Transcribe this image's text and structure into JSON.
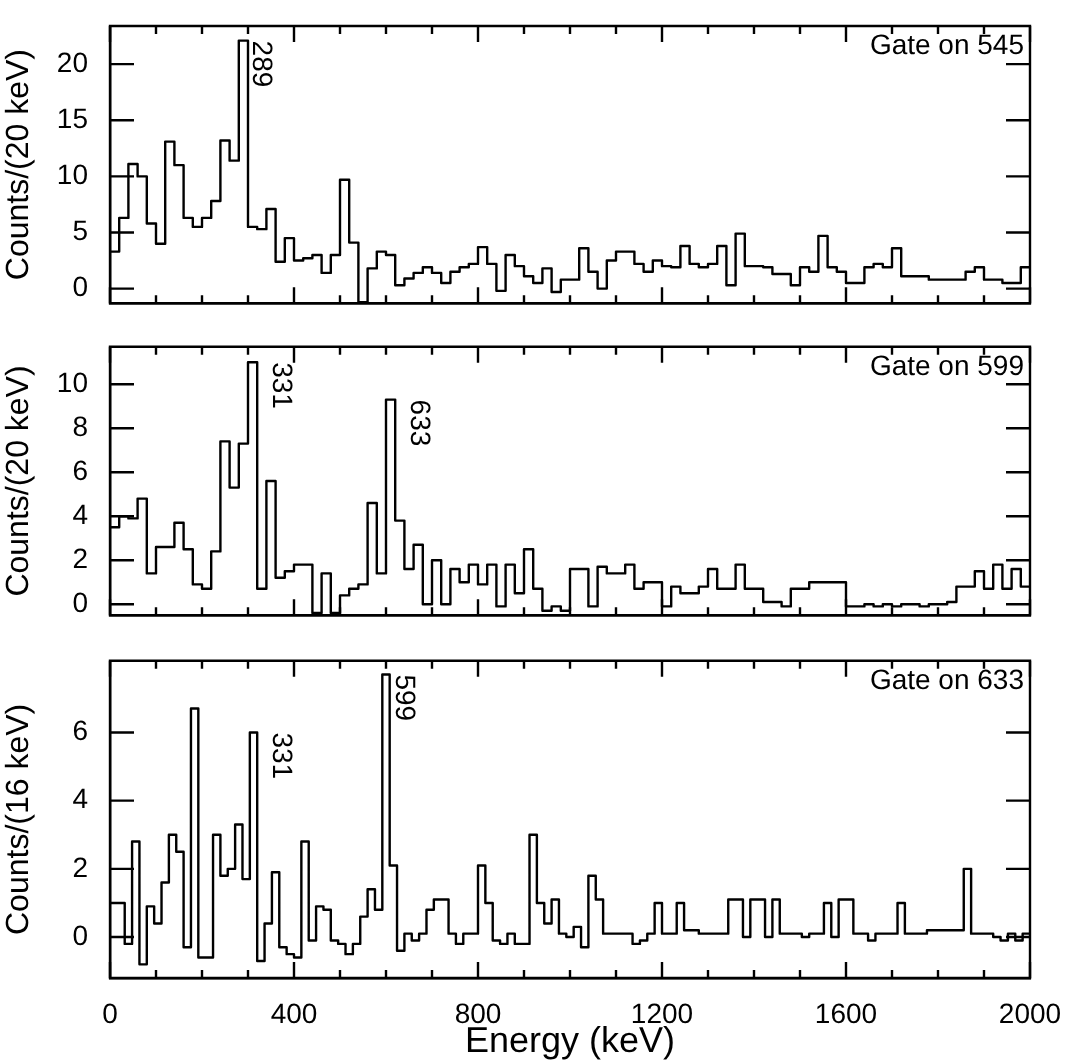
{
  "chart_data": [
    {
      "type": "histogram",
      "ylabel": "Counts/(20 keV)",
      "tick_labels": "y",
      "color": "#000000",
      "annotations": [
        "Gate on 545",
        {
          "text": "289",
          "x": 289,
          "y": 22.1
        }
      ],
      "xlim": [
        0,
        2000
      ],
      "xticks": [
        0,
        {
          "value": 100,
          "label": null
        },
        {
          "value": 200,
          "label": null
        },
        {
          "value": 300,
          "label": null
        },
        400,
        {
          "value": 500,
          "label": null
        },
        {
          "value": 600,
          "label": null
        },
        {
          "value": 700,
          "label": null
        },
        800,
        {
          "value": 900,
          "label": null
        },
        {
          "value": 1000,
          "label": null
        },
        {
          "value": 1100,
          "label": null
        },
        1200,
        {
          "value": 1300,
          "label": null
        },
        {
          "value": 1400,
          "label": null
        },
        {
          "value": 1500,
          "label": null
        },
        1600,
        {
          "value": 1700,
          "label": null
        },
        {
          "value": 1800,
          "label": null
        },
        {
          "value": 1900,
          "label": null
        },
        2000
      ],
      "ylim": [
        -1.3,
        23.4
      ],
      "yticks": [
        0,
        5,
        10,
        15,
        20
      ],
      "bins": [
        0,
        20,
        40,
        60,
        80,
        100,
        120,
        140,
        160,
        180,
        200,
        220,
        240,
        260,
        280,
        300,
        320,
        340,
        360,
        380,
        400,
        420,
        440,
        460,
        480,
        500,
        520,
        540,
        560,
        580,
        600,
        620,
        640,
        660,
        680,
        700,
        720,
        740,
        760,
        780,
        800,
        820,
        840,
        860,
        880,
        900,
        920,
        940,
        960,
        980,
        1000,
        1020,
        1040,
        1060,
        1080,
        1100,
        1120,
        1140,
        1160,
        1180,
        1200,
        1220,
        1240,
        1260,
        1280,
        1300,
        1320,
        1340,
        1360,
        1380,
        1400,
        1420,
        1440,
        1460,
        1480,
        1500,
        1520,
        1540,
        1560,
        1580,
        1600,
        1620,
        1640,
        1660,
        1680,
        1700,
        1720,
        1740,
        1760,
        1780,
        1800,
        1820,
        1840,
        1860,
        1880,
        1900,
        1920,
        1940,
        1960,
        1980,
        2000
      ],
      "values": [
        3.3,
        6.3,
        11.1,
        10,
        5.8,
        4.0,
        13.1,
        11,
        6.3,
        5.5,
        6.3,
        7.8,
        13.2,
        11.4,
        22.1,
        5.5,
        5.3,
        7.1,
        2.4,
        4.5,
        2.5,
        2.7,
        3.0,
        1.4,
        3.0,
        9.7,
        4.1,
        -1.2,
        1.8,
        3.3,
        3.0,
        0.3,
        0.9,
        1.4,
        1.9,
        1.4,
        0.5,
        1.5,
        1.9,
        2.2,
        3.7,
        2.2,
        -0.2,
        3.0,
        2.0,
        1.1,
        0.5,
        1.8,
        -0.3,
        0.8,
        0.8,
        3.6,
        1.5,
        0,
        2.5,
        3.3,
        3.3,
        2.2,
        1.5,
        2.5,
        2.0,
        1.9,
        3.8,
        2.2,
        1.9,
        2.2,
        3.8,
        0.3,
        4.9,
        2.0,
        2.0,
        1.9,
        1.3,
        1.3,
        0.3,
        1.9,
        1.5,
        4.7,
        1.9,
        1.5,
        0.5,
        0.5,
        1.9,
        2.2,
        1.9,
        3.6,
        1.1,
        1.1,
        1.1,
        0.8,
        0.8,
        0.8,
        0.8,
        1.5,
        1.9,
        0.8,
        0.8,
        0.5,
        0.5,
        1.9
      ]
    },
    {
      "type": "histogram",
      "ylabel": "Counts/(20 keV)",
      "tick_labels": "y",
      "color": "#000000",
      "annotations": [
        "Gate on 599",
        {
          "text": "331",
          "x": 331,
          "y": 11.0
        },
        {
          "text": "633",
          "x": 633,
          "y": 9.3
        }
      ],
      "xlim": [
        0,
        2000
      ],
      "xticks": [
        0,
        {
          "value": 100,
          "label": null
        },
        {
          "value": 200,
          "label": null
        },
        {
          "value": 300,
          "label": null
        },
        400,
        {
          "value": 500,
          "label": null
        },
        {
          "value": 600,
          "label": null
        },
        {
          "value": 700,
          "label": null
        },
        800,
        {
          "value": 900,
          "label": null
        },
        {
          "value": 1000,
          "label": null
        },
        {
          "value": 1100,
          "label": null
        },
        1200,
        {
          "value": 1300,
          "label": null
        },
        {
          "value": 1400,
          "label": null
        },
        {
          "value": 1500,
          "label": null
        },
        1600,
        {
          "value": 1700,
          "label": null
        },
        {
          "value": 1800,
          "label": null
        },
        {
          "value": 1900,
          "label": null
        },
        2000
      ],
      "ylim": [
        -0.5,
        11.7
      ],
      "yticks": [
        0,
        2,
        4,
        6,
        8,
        10
      ],
      "bins": [
        0,
        20,
        40,
        60,
        80,
        100,
        120,
        140,
        160,
        180,
        200,
        220,
        240,
        260,
        280,
        300,
        320,
        340,
        360,
        380,
        400,
        420,
        440,
        460,
        480,
        500,
        520,
        540,
        560,
        580,
        600,
        620,
        640,
        660,
        680,
        700,
        720,
        740,
        760,
        780,
        800,
        820,
        840,
        860,
        880,
        900,
        920,
        940,
        960,
        980,
        1000,
        1020,
        1040,
        1060,
        1080,
        1100,
        1120,
        1140,
        1160,
        1180,
        1200,
        1220,
        1240,
        1260,
        1280,
        1300,
        1320,
        1340,
        1360,
        1380,
        1400,
        1420,
        1440,
        1460,
        1480,
        1500,
        1520,
        1540,
        1560,
        1580,
        1600,
        1620,
        1640,
        1660,
        1680,
        1700,
        1720,
        1740,
        1760,
        1780,
        1800,
        1820,
        1840,
        1860,
        1880,
        1900,
        1920,
        1940,
        1960,
        1980,
        2000
      ],
      "values": [
        3.5,
        4.0,
        3.9,
        4.8,
        1.4,
        2.6,
        2.6,
        3.7,
        2.5,
        0.9,
        0.7,
        2.4,
        7.4,
        5.3,
        7.3,
        11.0,
        0.7,
        5.6,
        1.2,
        1.5,
        1.8,
        1.8,
        -0.4,
        1.4,
        -0.4,
        0.4,
        0.7,
        0.9,
        4.6,
        1.4,
        9.3,
        3.8,
        1.6,
        2.7,
        0,
        2.0,
        0,
        1.6,
        1.0,
        1.8,
        0.9,
        1.8,
        -0.1,
        1.8,
        0.5,
        2.5,
        0.7,
        -0.3,
        -0.1,
        -0.3,
        1.6,
        1.6,
        -0.1,
        1.7,
        1.4,
        1.4,
        1.8,
        0.7,
        1.0,
        1.0,
        -0.1,
        0.8,
        0.5,
        0.5,
        0.8,
        1.6,
        0.7,
        0.7,
        1.8,
        0.7,
        0.7,
        0.1,
        0.1,
        -0.1,
        0.7,
        0.7,
        1.0,
        1.0,
        1.0,
        1.0,
        -0.1,
        -0.1,
        0,
        -0.1,
        0,
        -0.1,
        0,
        0,
        -0.1,
        0,
        0,
        0.1,
        0.8,
        0.8,
        1.5,
        0.7,
        1.8,
        0.7,
        1.6,
        0.8
      ]
    },
    {
      "type": "histogram",
      "ylabel": "Counts/(16 keV)",
      "xlabel": "Energy (keV)",
      "color": "#000000",
      "annotations": [
        "Gate on 633",
        {
          "text": "331",
          "x": 331,
          "y": 6.0
        },
        {
          "text": "599",
          "x": 599,
          "y": 7.7
        }
      ],
      "xlim": [
        0,
        2000
      ],
      "xticks": [
        0,
        {
          "value": 100,
          "label": null
        },
        {
          "value": 200,
          "label": null
        },
        {
          "value": 300,
          "label": null
        },
        400,
        {
          "value": 500,
          "label": null
        },
        {
          "value": 600,
          "label": null
        },
        {
          "value": 700,
          "label": null
        },
        800,
        {
          "value": 900,
          "label": null
        },
        {
          "value": 1000,
          "label": null
        },
        {
          "value": 1100,
          "label": null
        },
        1200,
        {
          "value": 1300,
          "label": null
        },
        {
          "value": 1400,
          "label": null
        },
        {
          "value": 1500,
          "label": null
        },
        1600,
        {
          "value": 1700,
          "label": null
        },
        {
          "value": 1800,
          "label": null
        },
        {
          "value": 1900,
          "label": null
        },
        2000
      ],
      "ylim": [
        -1.2,
        8.1
      ],
      "yticks": [
        0,
        2,
        4,
        6
      ],
      "bins": [
        0,
        16,
        32,
        48,
        64,
        80,
        96,
        112,
        128,
        144,
        160,
        176,
        192,
        208,
        224,
        240,
        256,
        272,
        288,
        304,
        320,
        336,
        352,
        368,
        384,
        400,
        416,
        432,
        448,
        464,
        480,
        496,
        512,
        528,
        544,
        560,
        576,
        592,
        608,
        624,
        640,
        656,
        672,
        688,
        704,
        720,
        736,
        752,
        768,
        784,
        800,
        816,
        832,
        848,
        864,
        880,
        896,
        912,
        928,
        944,
        960,
        976,
        992,
        1008,
        1024,
        1040,
        1056,
        1072,
        1088,
        1104,
        1120,
        1136,
        1152,
        1168,
        1184,
        1200,
        1216,
        1232,
        1248,
        1264,
        1280,
        1296,
        1312,
        1328,
        1344,
        1360,
        1376,
        1392,
        1408,
        1424,
        1440,
        1456,
        1472,
        1488,
        1504,
        1520,
        1536,
        1552,
        1568,
        1584,
        1600,
        1616,
        1632,
        1648,
        1664,
        1680,
        1696,
        1712,
        1728,
        1744,
        1760,
        1776,
        1792,
        1808,
        1824,
        1840,
        1856,
        1872,
        1888,
        1904,
        1920,
        1936,
        1952,
        1968,
        1984,
        2000
      ],
      "values": [
        1.0,
        1.0,
        -0.2,
        2.8,
        -0.8,
        0.9,
        0.4,
        1.6,
        3.0,
        2.5,
        -0.3,
        6.7,
        -0.6,
        -0.6,
        3.0,
        1.8,
        2.0,
        3.3,
        1.7,
        6.0,
        -0.7,
        0.4,
        1.9,
        -0.3,
        -0.5,
        -0.6,
        2.8,
        -0.1,
        0.9,
        0.8,
        -0.1,
        -0.2,
        -0.5,
        -0.2,
        0.6,
        1.4,
        0.8,
        7.7,
        2.1,
        -0.4,
        0.1,
        -0.1,
        0.1,
        0.8,
        1.1,
        1.1,
        0.1,
        -0.2,
        0.1,
        0.1,
        2.1,
        1.0,
        -0.1,
        -0.2,
        0.1,
        -0.2,
        -0.2,
        3.0,
        1.0,
        0.4,
        1.1,
        0.1,
        0,
        0.3,
        -0.3,
        1.8,
        1.1,
        0.1,
        0.1,
        0.1,
        0.1,
        -0.2,
        -0.1,
        0.1,
        1.0,
        0.1,
        0.1,
        1.0,
        0.2,
        0.2,
        0.1,
        0.1,
        0.1,
        0.1,
        1.1,
        1.1,
        0,
        1.1,
        1.1,
        0,
        1.1,
        0.1,
        0.1,
        0.1,
        0,
        0.1,
        0.1,
        1.0,
        0,
        1.1,
        1.1,
        0.1,
        0.1,
        -0.1,
        0.1,
        0.1,
        0.1,
        1.0,
        0.1,
        0.1,
        0.1,
        0.2,
        0.2,
        0.2,
        0.2,
        0.2,
        2.0,
        0.1,
        0.1,
        0.1,
        0,
        -0.1,
        0.1,
        -0.1,
        0.1
      ]
    }
  ]
}
